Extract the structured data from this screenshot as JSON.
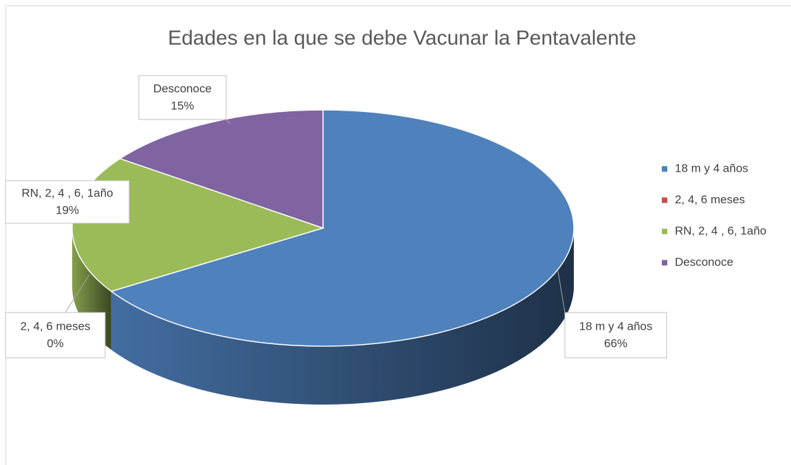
{
  "chart_data": {
    "type": "pie",
    "title": "Edades en la que se debe Vacunar la Pentavalente",
    "categories": [
      "18 m y 4 años",
      "2, 4, 6 meses",
      "RN, 2, 4 , 6, 1año",
      "Desconoce"
    ],
    "values": [
      66,
      0,
      19,
      15
    ],
    "value_labels": [
      "66%",
      "0%",
      "19%",
      "15%"
    ],
    "colors": [
      "#4f81bd",
      "#c0504d",
      "#9bbb59",
      "#8064a2"
    ],
    "legend": "right"
  }
}
